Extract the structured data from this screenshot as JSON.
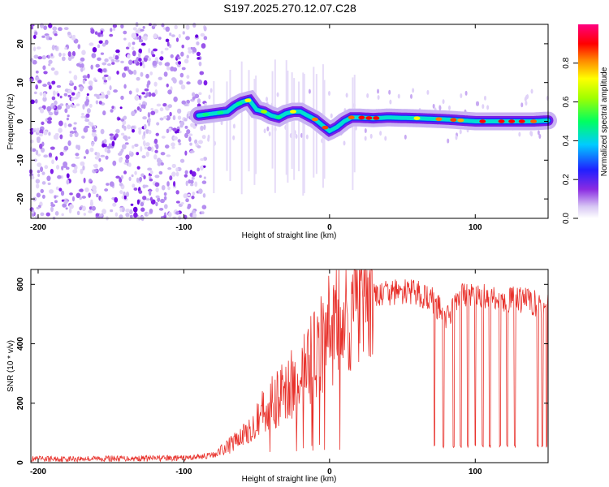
{
  "figure_title": "S197.2025.270.12.07.C28",
  "chart_data": [
    {
      "type": "heatmap",
      "title": "S197.2025.270.12.07.C28",
      "xlabel": "Height of straight line (km)",
      "ylabel": "Frequency (Hz)",
      "xlim": [
        -205,
        150
      ],
      "ylim": [
        -25,
        25
      ],
      "x_ticks": [
        -200,
        -100,
        0,
        100
      ],
      "y_ticks": [
        -20,
        -10,
        0,
        10,
        20
      ],
      "colorbar": {
        "label": "Normalized spectral amplitude",
        "range": [
          0,
          1
        ],
        "ticks": [
          "0.0",
          "0.2",
          "0.4",
          "0.6",
          "0.8"
        ],
        "colormap": "rainbow (white-violet-blue-cyan-green-yellow-red-magenta)"
      },
      "ridge_line": {
        "description": "dominant frequency ridge vs height",
        "x": [
          -90,
          -80,
          -70,
          -65,
          -60,
          -55,
          -50,
          -45,
          -40,
          -35,
          -30,
          -25,
          -20,
          -15,
          -10,
          -5,
          0,
          5,
          10,
          15,
          20,
          30,
          40,
          60,
          80,
          100,
          120,
          140,
          150
        ],
        "y": [
          1.5,
          2,
          2.5,
          4,
          5,
          5.5,
          3,
          2.5,
          1.5,
          1,
          2,
          2.5,
          2.5,
          1.5,
          0.5,
          -1,
          -2.5,
          -1.5,
          0,
          1,
          1,
          0.8,
          1,
          0.8,
          0.5,
          0,
          0,
          0,
          0.2
        ]
      },
      "noise_region": {
        "x_start": -205,
        "x_end": -85,
        "description": "broadband noise, scattered blobs across all frequencies"
      }
    },
    {
      "type": "line",
      "xlabel": "Height of straight line (km)",
      "ylabel": "SNR (10 * v/v)",
      "xlim": [
        -205,
        150
      ],
      "ylim": [
        0,
        650
      ],
      "x_ticks": [
        -200,
        -100,
        0,
        100
      ],
      "y_ticks": [
        0,
        200,
        400,
        600
      ],
      "color": "#e8312b",
      "envelope": {
        "description": "approximate mean SNR trend",
        "x": [
          -205,
          -150,
          -100,
          -80,
          -70,
          -60,
          -50,
          -40,
          -30,
          -20,
          -10,
          0,
          10,
          20,
          30,
          40,
          50,
          60,
          70,
          75,
          80,
          85,
          90,
          100,
          110,
          120,
          130,
          140,
          150
        ],
        "y": [
          12,
          14,
          15,
          25,
          55,
          90,
          150,
          200,
          240,
          300,
          370,
          440,
          490,
          540,
          560,
          570,
          575,
          570,
          550,
          520,
          480,
          530,
          560,
          570,
          555,
          545,
          550,
          540,
          520
        ]
      },
      "dropouts": {
        "description": "sharp dips to low SNR",
        "x": [
          72,
          78,
          85,
          90,
          95,
          100,
          105,
          110,
          117,
          122,
          127,
          143,
          146,
          149
        ],
        "min_y": 50
      }
    }
  ]
}
